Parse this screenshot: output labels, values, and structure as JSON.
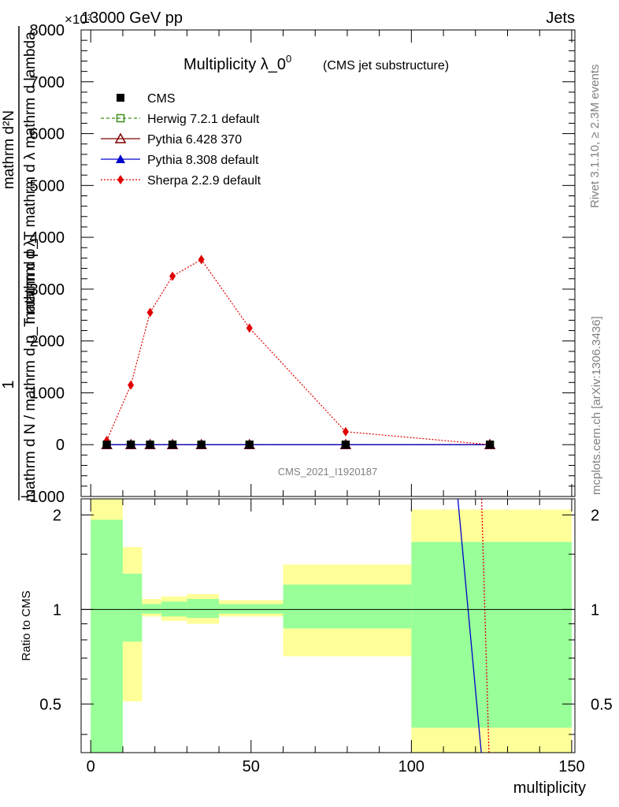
{
  "header": {
    "energy": "13000 GeV pp",
    "category": "Jets",
    "multiplier": "×10³"
  },
  "chart_data": {
    "type": "line",
    "title": "Multiplicity λ_0⁰",
    "title_main": "Multiplicity λ_0",
    "title_sup": "0",
    "title_sub": "(CMS jet substructure)",
    "ylabel_numerator": "mathrm d²N",
    "ylabel_denominator": "mathrm d p_T mathrm d λ mathrm d lambda",
    "ylabel_prefix": "1",
    "ylabel_prefix_den": "mathrm d N / mathrm d p_T mathrm d λ",
    "xlabel": "multiplicity",
    "ratio_ylabel": "Ratio to CMS",
    "analysis_id": "CMS_2021_I1920187",
    "rivet_label": "Rivet 3.1.10, ≥ 2.3M events",
    "mcplots_label": "mcplots.cern.ch [arXiv:1306.3436]",
    "xlim": [
      -3,
      151
    ],
    "ylim": [
      -1000,
      8000
    ],
    "ratio_ylim": [
      0.35,
      2.25
    ],
    "x_ticks": [
      0,
      50,
      100,
      150
    ],
    "y_ticks": [
      -1000,
      0,
      1000,
      2000,
      3000,
      4000,
      5000,
      6000,
      7000,
      8000
    ],
    "y_tick_labels": [
      "−1000",
      "0",
      "1000",
      "2000",
      "3000",
      "4000",
      "5000",
      "6000",
      "7000",
      "8000"
    ],
    "ratio_ticks": [
      0.5,
      1,
      2
    ],
    "ratio_tick_labels": [
      "0.5",
      "1",
      "2"
    ],
    "x": [
      5,
      12.5,
      18.5,
      25.5,
      34.5,
      49.5,
      79.5,
      124.5
    ],
    "series": [
      {
        "name": "CMS",
        "values": [
          0,
          0,
          0,
          0,
          0,
          0,
          0,
          0
        ],
        "color": "#000000",
        "marker": "square-filled"
      },
      {
        "name": "Herwig 7.2.1 default",
        "values": [
          0,
          0,
          0,
          0,
          0,
          0,
          0,
          0
        ],
        "color": "#3a8e13",
        "marker": "square-open",
        "dash": "4,3"
      },
      {
        "name": "Pythia 6.428 370",
        "values": [
          0,
          0,
          0,
          0,
          0,
          0,
          0,
          0
        ],
        "color": "#800000",
        "marker": "triangle-open",
        "dash": ""
      },
      {
        "name": "Pythia 8.308 default",
        "values": [
          0,
          0,
          0,
          0,
          0,
          0,
          0,
          0
        ],
        "color": "#0000cc",
        "marker": "triangle-filled",
        "dash": ""
      },
      {
        "name": "Sherpa 2.2.9 default",
        "values": [
          80,
          1150,
          2550,
          3250,
          3570,
          2250,
          250,
          0
        ],
        "color": "#e00000",
        "marker": "diamond-filled",
        "dash": "2,2"
      }
    ],
    "ratio_bands": [
      {
        "x0": 0,
        "x1": 10,
        "green": [
          0.35,
          1.93
        ],
        "yellow": [
          0.35,
          2.3
        ]
      },
      {
        "x0": 10,
        "x1": 16,
        "green": [
          0.79,
          1.3
        ],
        "yellow": [
          0.51,
          1.58
        ]
      },
      {
        "x0": 16,
        "x1": 22,
        "green": [
          0.97,
          1.04
        ],
        "yellow": [
          0.95,
          1.08
        ]
      },
      {
        "x0": 22,
        "x1": 30,
        "green": [
          0.95,
          1.06
        ],
        "yellow": [
          0.92,
          1.1
        ]
      },
      {
        "x0": 30,
        "x1": 40,
        "green": [
          0.94,
          1.08
        ],
        "yellow": [
          0.9,
          1.12
        ]
      },
      {
        "x0": 40,
        "x1": 60,
        "green": [
          0.97,
          1.04
        ],
        "yellow": [
          0.95,
          1.07
        ]
      },
      {
        "x0": 60,
        "x1": 100,
        "green": [
          0.87,
          1.2
        ],
        "yellow": [
          0.71,
          1.39
        ]
      },
      {
        "x0": 100,
        "x1": 150,
        "green": [
          0.42,
          1.64
        ],
        "yellow": [
          0.35,
          2.08
        ]
      }
    ],
    "ratio_lines": [
      {
        "name": "Pythia 8.308 default ratio",
        "color": "#0000cc",
        "dash": "",
        "points": [
          [
            114.5,
            2.25
          ],
          [
            121.8,
            0.35
          ]
        ]
      },
      {
        "name": "Sherpa 2.2.9 default ratio",
        "color": "#e00000",
        "dash": "2,2",
        "points": [
          [
            121.9,
            2.25
          ],
          [
            124.2,
            0.35
          ]
        ]
      }
    ]
  }
}
